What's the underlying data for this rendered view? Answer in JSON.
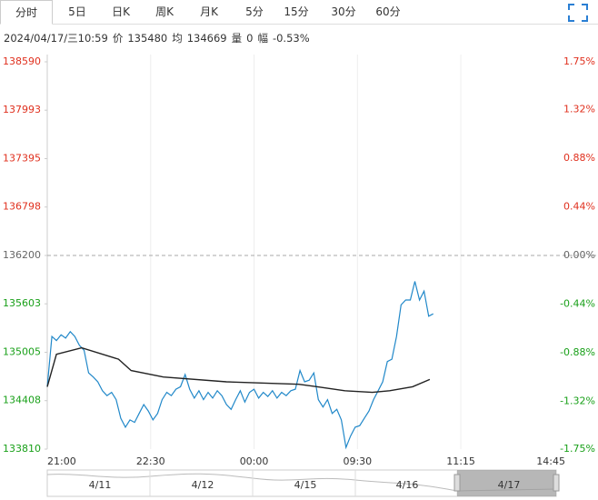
{
  "tabs": [
    "分时",
    "5日",
    "日K",
    "周K",
    "月K",
    "5分",
    "15分",
    "30分",
    "60分"
  ],
  "info": {
    "datetime": "2024/04/17/三10:59",
    "price_label": "价",
    "price": 135480,
    "avg_label": "均",
    "avg": 134669,
    "vol_label": "量",
    "vol": 0,
    "amp_label": "幅",
    "amp": "-0.53%"
  },
  "chart_data": {
    "type": "line",
    "ylim": [
      133810,
      138590
    ],
    "yticks": [
      133810,
      134408,
      135005,
      135603,
      136200,
      136798,
      137395,
      137993,
      138590
    ],
    "y2lim": [
      -1.75,
      1.75
    ],
    "y2ticks": [
      {
        "value": -1.75,
        "label": "-1.75%"
      },
      {
        "value": -1.32,
        "label": "-1.32%"
      },
      {
        "value": -0.88,
        "label": "-0.88%"
      },
      {
        "value": -0.44,
        "label": "-0.44%"
      },
      {
        "value": 0,
        "label": "0.00%"
      },
      {
        "value": 0.44,
        "label": "0.44%"
      },
      {
        "value": 0.88,
        "label": "0.88%"
      },
      {
        "value": 1.32,
        "label": "1.32%"
      },
      {
        "value": 1.75,
        "label": "1.75%"
      }
    ],
    "xlim": [
      0,
      443
    ],
    "xticks": [
      {
        "value": 0,
        "label": "21:00"
      },
      {
        "value": 90,
        "label": "22:30"
      },
      {
        "value": 180,
        "label": "00:00"
      },
      {
        "value": 270,
        "label": "09:30"
      },
      {
        "value": 360,
        "label": "11:15"
      },
      {
        "value": 443,
        "label": "14:45"
      }
    ],
    "up_color": "#e0301e",
    "down_color": "#19a019",
    "flat_color": "#666666",
    "series": [
      {
        "color": "#2188c9",
        "x": [
          0,
          4,
          8,
          12,
          16,
          20,
          24,
          28,
          32,
          36,
          40,
          44,
          48,
          52,
          56,
          60,
          64,
          68,
          72,
          76,
          80,
          84,
          88,
          92,
          96,
          100,
          104,
          108,
          112,
          116,
          120,
          124,
          128,
          132,
          136,
          140,
          144,
          148,
          152,
          156,
          160,
          164,
          168,
          172,
          176,
          180,
          184,
          188,
          192,
          196,
          200,
          204,
          208,
          212,
          216,
          220,
          224,
          228,
          232,
          236,
          240,
          244,
          248,
          252,
          256,
          260,
          264,
          268,
          272,
          276,
          280,
          284,
          288,
          292,
          296,
          300,
          304,
          308,
          312,
          316,
          320,
          324,
          328,
          332,
          336
        ],
        "values": [
          134580,
          135200,
          135150,
          135220,
          135180,
          135260,
          135200,
          135090,
          135030,
          134750,
          134700,
          134640,
          134530,
          134470,
          134510,
          134420,
          134190,
          134080,
          134170,
          134140,
          134250,
          134360,
          134280,
          134170,
          134250,
          134420,
          134510,
          134470,
          134550,
          134580,
          134730,
          134550,
          134440,
          134530,
          134420,
          134510,
          134440,
          134530,
          134470,
          134360,
          134300,
          134420,
          134530,
          134390,
          134510,
          134550,
          134440,
          134510,
          134460,
          134530,
          134440,
          134510,
          134470,
          134530,
          134550,
          134780,
          134640,
          134660,
          134750,
          134420,
          134330,
          134420,
          134250,
          134300,
          134170,
          133830,
          133970,
          134080,
          134100,
          134190,
          134280,
          134420,
          134530,
          134640,
          134890,
          134920,
          135200,
          135590,
          135650,
          135650,
          135880,
          135650,
          135760,
          135450,
          135480
        ]
      },
      {
        "color": "#222222",
        "x": [
          0,
          8,
          30,
          62,
          73,
          101,
          156,
          219,
          235,
          259,
          283,
          298,
          318,
          333
        ],
        "values": [
          134580,
          134980,
          135060,
          134920,
          134780,
          134700,
          134640,
          134610,
          134580,
          134530,
          134510,
          134530,
          134580,
          134670
        ]
      }
    ],
    "navigator_dates": [
      "4/11",
      "4/12",
      "4/15",
      "4/16",
      "4/17"
    ]
  }
}
